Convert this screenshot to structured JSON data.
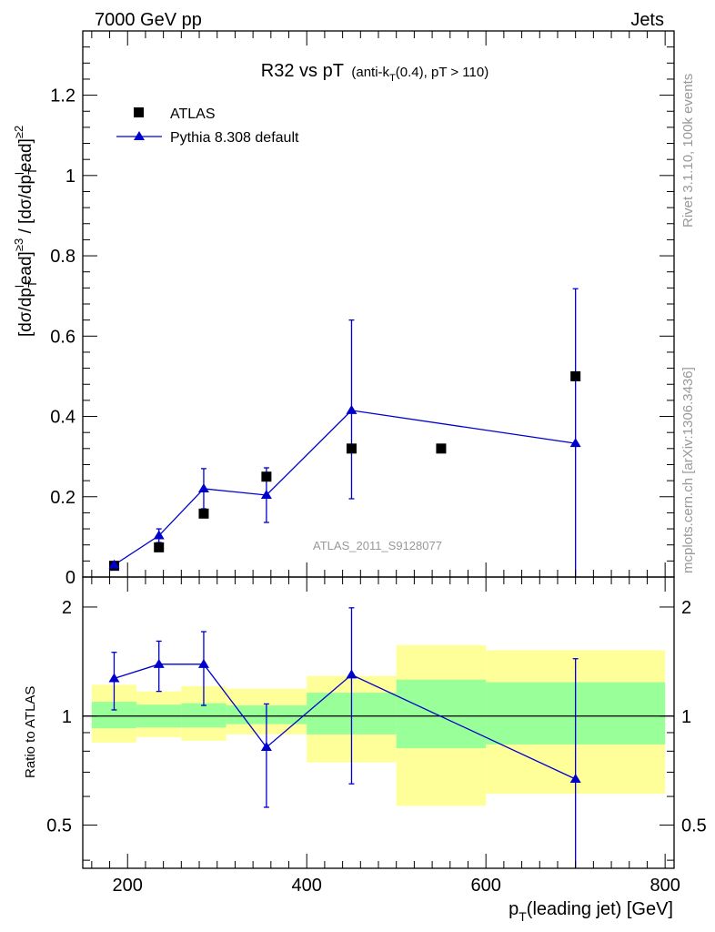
{
  "header": {
    "left": "7000 GeV pp",
    "right": "Jets"
  },
  "side_labels": {
    "rivet": "Rivet 3.1.10,  100k events",
    "mcplots": "mcplots.cern.ch [arXiv:1306.3436]"
  },
  "watermark": "ATLAS_2011_S9128077",
  "colors": {
    "data": "#000000",
    "mc": "#0000cc",
    "band_inner": "#99ff99",
    "band_outer": "#ffff99"
  },
  "chart_data": [
    {
      "type": "scatter",
      "title": "R32 vs pT",
      "title_sub": "(anti-k",
      "title_sub_T": "T",
      "title_sub_rest": "(0.4), pT > 110)",
      "ylabel": {
        "p1": "[dσ/dp",
        "s1": "T",
        "p2": "ead]",
        "e1": "≥3",
        "p3": " / [dσ/dp",
        "s2": "T",
        "p4": "ead]",
        "e2": "≥2",
        "l1": "l",
        "l2": "l"
      },
      "xlim": [
        150,
        810
      ],
      "ylim": [
        0,
        1.36
      ],
      "y_ticks": [
        0,
        0.2,
        0.4,
        0.6,
        0.8,
        1,
        1.2
      ],
      "y_tick_labels": [
        "0",
        "0.2",
        "0.4",
        "0.6",
        "0.8",
        "1",
        "1.2"
      ],
      "legend_position": "top-left",
      "series": [
        {
          "name": "ATLAS",
          "marker": "square",
          "x": [
            185,
            235,
            285,
            355,
            450,
            550,
            700
          ],
          "y": [
            0.028,
            0.074,
            0.158,
            0.25,
            0.32,
            0.32,
            0.5
          ]
        },
        {
          "name": "Pythia 8.308 default",
          "marker": "triangle",
          "x": [
            185,
            235,
            285,
            355,
            450,
            700
          ],
          "y": [
            0.03,
            0.103,
            0.22,
            0.204,
            0.415,
            0.333
          ],
          "err_lo": [
            0.003,
            0.017,
            0.05,
            0.068,
            0.22,
            0.333
          ],
          "err_hi": [
            0.003,
            0.017,
            0.05,
            0.068,
            0.225,
            0.385
          ]
        }
      ]
    },
    {
      "type": "scatter",
      "ylabel": "Ratio to ATLAS",
      "xlabel_main": "p",
      "xlabel_sub": "T",
      "xlabel_rest": "(leading jet) [GeV]",
      "xlim": [
        150,
        810
      ],
      "ylim": [
        0.38,
        2.42
      ],
      "y_scale": "log",
      "y_ticks": [
        0.5,
        1,
        2
      ],
      "y_tick_labels": [
        "0.5",
        "1",
        "2"
      ],
      "x_ticks": [
        200,
        400,
        600,
        800
      ],
      "x_tick_labels": [
        "200",
        "400",
        "600",
        "800"
      ],
      "reference_line": 1,
      "bands": [
        {
          "x0": 160,
          "x1": 210,
          "inner": [
            0.925,
            1.095
          ],
          "outer": [
            0.845,
            1.22
          ]
        },
        {
          "x0": 210,
          "x1": 260,
          "inner": [
            0.93,
            1.075
          ],
          "outer": [
            0.875,
            1.17
          ]
        },
        {
          "x0": 260,
          "x1": 310,
          "inner": [
            0.93,
            1.085
          ],
          "outer": [
            0.855,
            1.21
          ]
        },
        {
          "x0": 310,
          "x1": 400,
          "inner": [
            0.95,
            1.07
          ],
          "outer": [
            0.89,
            1.19
          ]
        },
        {
          "x0": 400,
          "x1": 500,
          "inner": [
            0.89,
            1.16
          ],
          "outer": [
            0.745,
            1.29
          ]
        },
        {
          "x0": 500,
          "x1": 600,
          "inner": [
            0.815,
            1.26
          ],
          "outer": [
            0.565,
            1.57
          ]
        },
        {
          "x0": 600,
          "x1": 800,
          "inner": [
            0.835,
            1.24
          ],
          "outer": [
            0.61,
            1.52
          ]
        }
      ],
      "series": [
        {
          "name": "Pythia 8.308 default",
          "marker": "triangle",
          "x": [
            185,
            235,
            285,
            355,
            450,
            700
          ],
          "y": [
            1.27,
            1.39,
            1.39,
            0.82,
            1.3,
            0.67
          ],
          "err_lo": [
            0.23,
            0.22,
            0.32,
            0.26,
            0.65,
            0.3
          ],
          "err_hi": [
            0.23,
            0.22,
            0.32,
            0.26,
            0.69,
            0.77
          ]
        }
      ]
    }
  ]
}
